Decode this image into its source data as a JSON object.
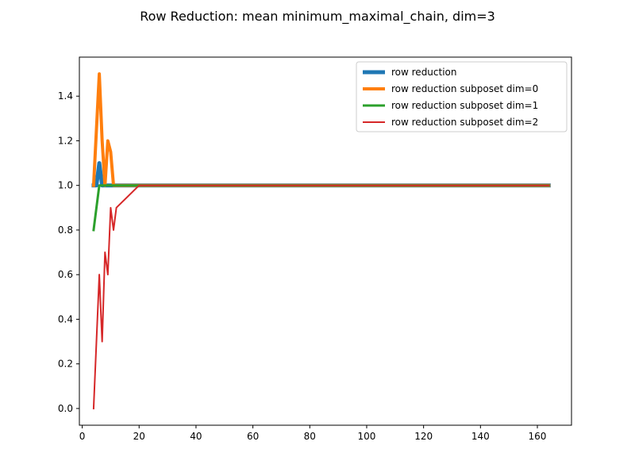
{
  "chart_data": {
    "type": "line",
    "title": "Row Reduction: mean minimum_maximal_chain, dim=3",
    "xlabel": "",
    "ylabel": "",
    "xlim": [
      -1.0,
      172.0
    ],
    "ylim": [
      -0.075,
      1.575
    ],
    "xticks": [
      0,
      20,
      40,
      60,
      80,
      100,
      120,
      140,
      160
    ],
    "yticks": [
      0.0,
      0.2,
      0.4,
      0.6,
      0.8,
      1.0,
      1.2,
      1.4
    ],
    "ytick_labels": [
      "0.0",
      "0.2",
      "0.4",
      "0.6",
      "0.8",
      "1.0",
      "1.2",
      "1.4"
    ],
    "grid": false,
    "legend_position": "upper right",
    "series": [
      {
        "name": "row reduction",
        "color": "#1f77b4",
        "line_width": 5,
        "x": [
          4,
          5,
          6,
          7,
          164
        ],
        "y": [
          1.0,
          1.0,
          1.1,
          1.0,
          1.0
        ]
      },
      {
        "name": "row reduction subposet dim=0",
        "color": "#ff7f0e",
        "line_width": 4,
        "x": [
          4,
          5,
          6,
          7,
          8,
          9,
          10,
          11,
          164
        ],
        "y": [
          1.0,
          1.25,
          1.5,
          1.2,
          1.0,
          1.2,
          1.15,
          1.0,
          1.0
        ]
      },
      {
        "name": "row reduction subposet dim=1",
        "color": "#2ca02c",
        "line_width": 3,
        "x": [
          4,
          5,
          6,
          164
        ],
        "y": [
          0.8,
          0.9,
          1.0,
          1.0
        ]
      },
      {
        "name": "row reduction subposet dim=2",
        "color": "#d62728",
        "line_width": 2,
        "x": [
          4,
          5,
          6,
          7,
          8,
          9,
          10,
          11,
          12,
          20,
          164
        ],
        "y": [
          0.0,
          0.3,
          0.6,
          0.3,
          0.7,
          0.6,
          0.9,
          0.8,
          0.9,
          1.0,
          1.0
        ]
      }
    ]
  }
}
